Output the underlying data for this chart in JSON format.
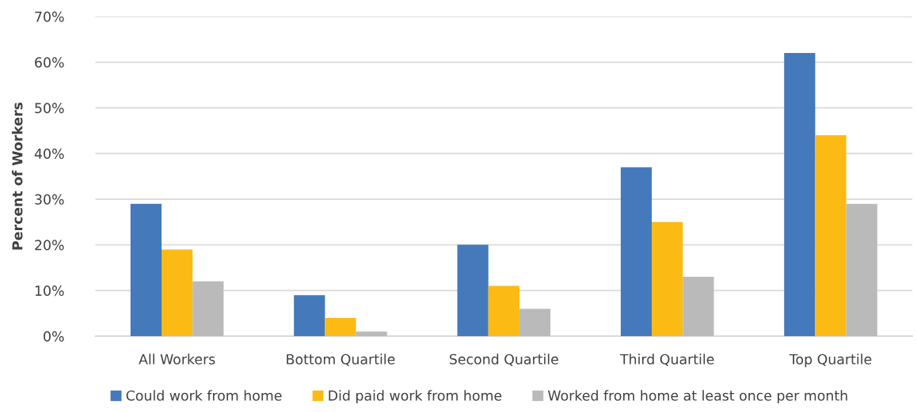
{
  "chart_data": {
    "type": "bar",
    "ylabel": "Percent of Workers",
    "categories": [
      "All Workers",
      "Bottom Quartile",
      "Second Quartile",
      "Third Quartile",
      "Top Quartile"
    ],
    "series": [
      {
        "name": "Could work from home",
        "color": "#4479bb",
        "values": [
          29,
          9,
          20,
          37,
          62
        ]
      },
      {
        "name": "Did paid work from home",
        "color": "#fbbb14",
        "values": [
          19,
          4,
          11,
          25,
          44
        ]
      },
      {
        "name": "Worked from home at least once per month",
        "color": "#bababa",
        "values": [
          12,
          1,
          6,
          13,
          29
        ]
      }
    ],
    "ylim": [
      0,
      70
    ],
    "yticks": [
      {
        "value": 0,
        "label": "0%"
      },
      {
        "value": 10,
        "label": "10%"
      },
      {
        "value": 20,
        "label": "20%"
      },
      {
        "value": 30,
        "label": "30%"
      },
      {
        "value": 40,
        "label": "40%"
      },
      {
        "value": 50,
        "label": "50%"
      },
      {
        "value": 60,
        "label": "60%"
      },
      {
        "value": 70,
        "label": "70%"
      }
    ],
    "grid": "y",
    "legend": "bottom"
  }
}
